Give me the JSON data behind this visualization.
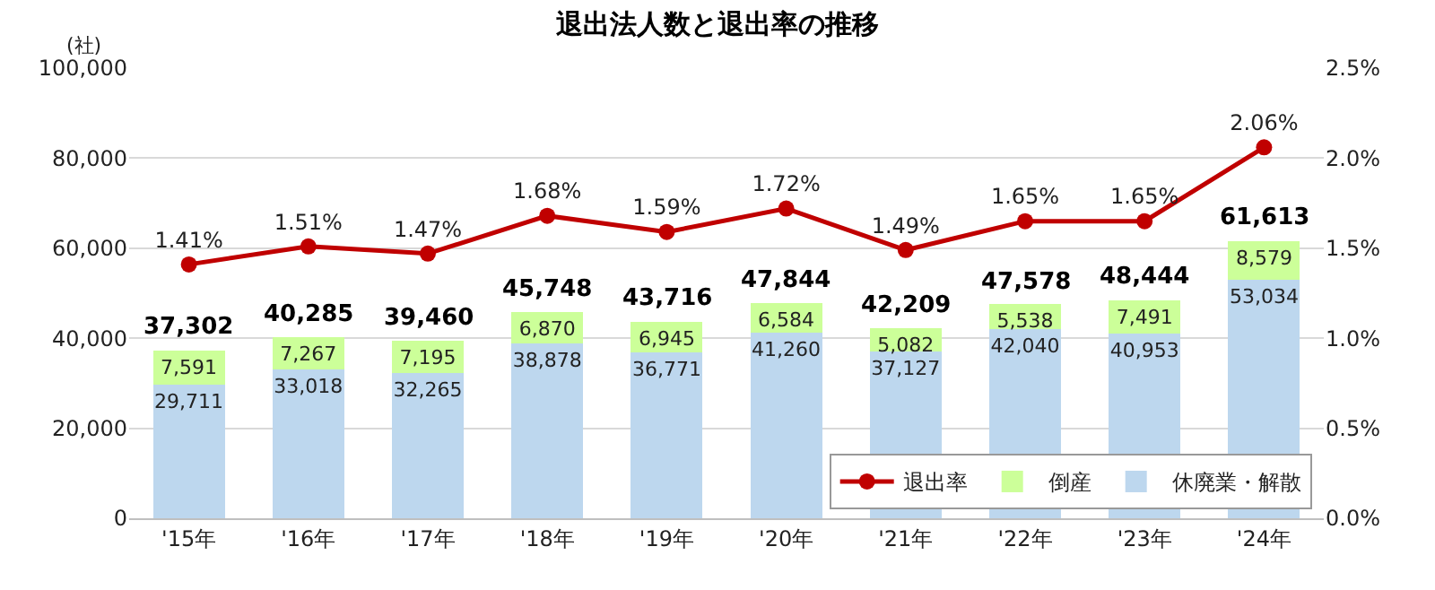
{
  "chart_data": {
    "type": "bar",
    "title": "退出法人数と退出率の推移",
    "ylabel": "(社)",
    "categories": [
      "'15年",
      "'16年",
      "'17年",
      "'18年",
      "'19年",
      "'20年",
      "'21年",
      "'22年",
      "'23年",
      "'24年"
    ],
    "stacked": true,
    "series": [
      {
        "name": "休廃業・解散",
        "color": "#bdd7ee",
        "values": [
          29711,
          33018,
          32265,
          38878,
          36771,
          41260,
          37127,
          42040,
          40953,
          53034
        ],
        "value_labels": [
          "29,711",
          "33,018",
          "32,265",
          "38,878",
          "36,771",
          "41,260",
          "37,127",
          "42,040",
          "40,953",
          "53,034"
        ]
      },
      {
        "name": "倒産",
        "color": "#ccff99",
        "values": [
          7591,
          7267,
          7195,
          6870,
          6945,
          6584,
          5082,
          5538,
          7491,
          8579
        ],
        "value_labels": [
          "7,591",
          "7,267",
          "7,195",
          "6,870",
          "6,945",
          "6,584",
          "5,082",
          "5,538",
          "7,491",
          "8,579"
        ]
      },
      {
        "name": "退出率",
        "type": "line",
        "axis": "y2",
        "color": "#c00000",
        "marker": "circle",
        "values": [
          1.41,
          1.51,
          1.47,
          1.68,
          1.59,
          1.72,
          1.49,
          1.65,
          1.65,
          2.06
        ],
        "value_labels": [
          "1.41%",
          "1.51%",
          "1.47%",
          "1.68%",
          "1.59%",
          "1.72%",
          "1.49%",
          "1.65%",
          "1.65%",
          "2.06%"
        ]
      }
    ],
    "totals": [
      "37,302",
      "40,285",
      "39,460",
      "45,748",
      "43,716",
      "47,844",
      "42,209",
      "47,578",
      "48,444",
      "61,613"
    ],
    "ylim": [
      0,
      100000
    ],
    "yticks": [
      {
        "value": 0,
        "label": "0"
      },
      {
        "value": 20000,
        "label": "20,000"
      },
      {
        "value": 40000,
        "label": "40,000"
      },
      {
        "value": 60000,
        "label": "60,000"
      },
      {
        "value": 80000,
        "label": "80,000"
      },
      {
        "value": 100000,
        "label": "100,000"
      }
    ],
    "y2lim": [
      0,
      2.5
    ],
    "y2ticks": [
      {
        "value": 0,
        "label": "0.0%"
      },
      {
        "value": 0.5,
        "label": "0.5%"
      },
      {
        "value": 1.0,
        "label": "1.0%"
      },
      {
        "value": 1.5,
        "label": "1.5%"
      },
      {
        "value": 2.0,
        "label": "2.0%"
      },
      {
        "value": 2.5,
        "label": "2.5%"
      }
    ],
    "grid": "y",
    "legend": "bottom right"
  }
}
